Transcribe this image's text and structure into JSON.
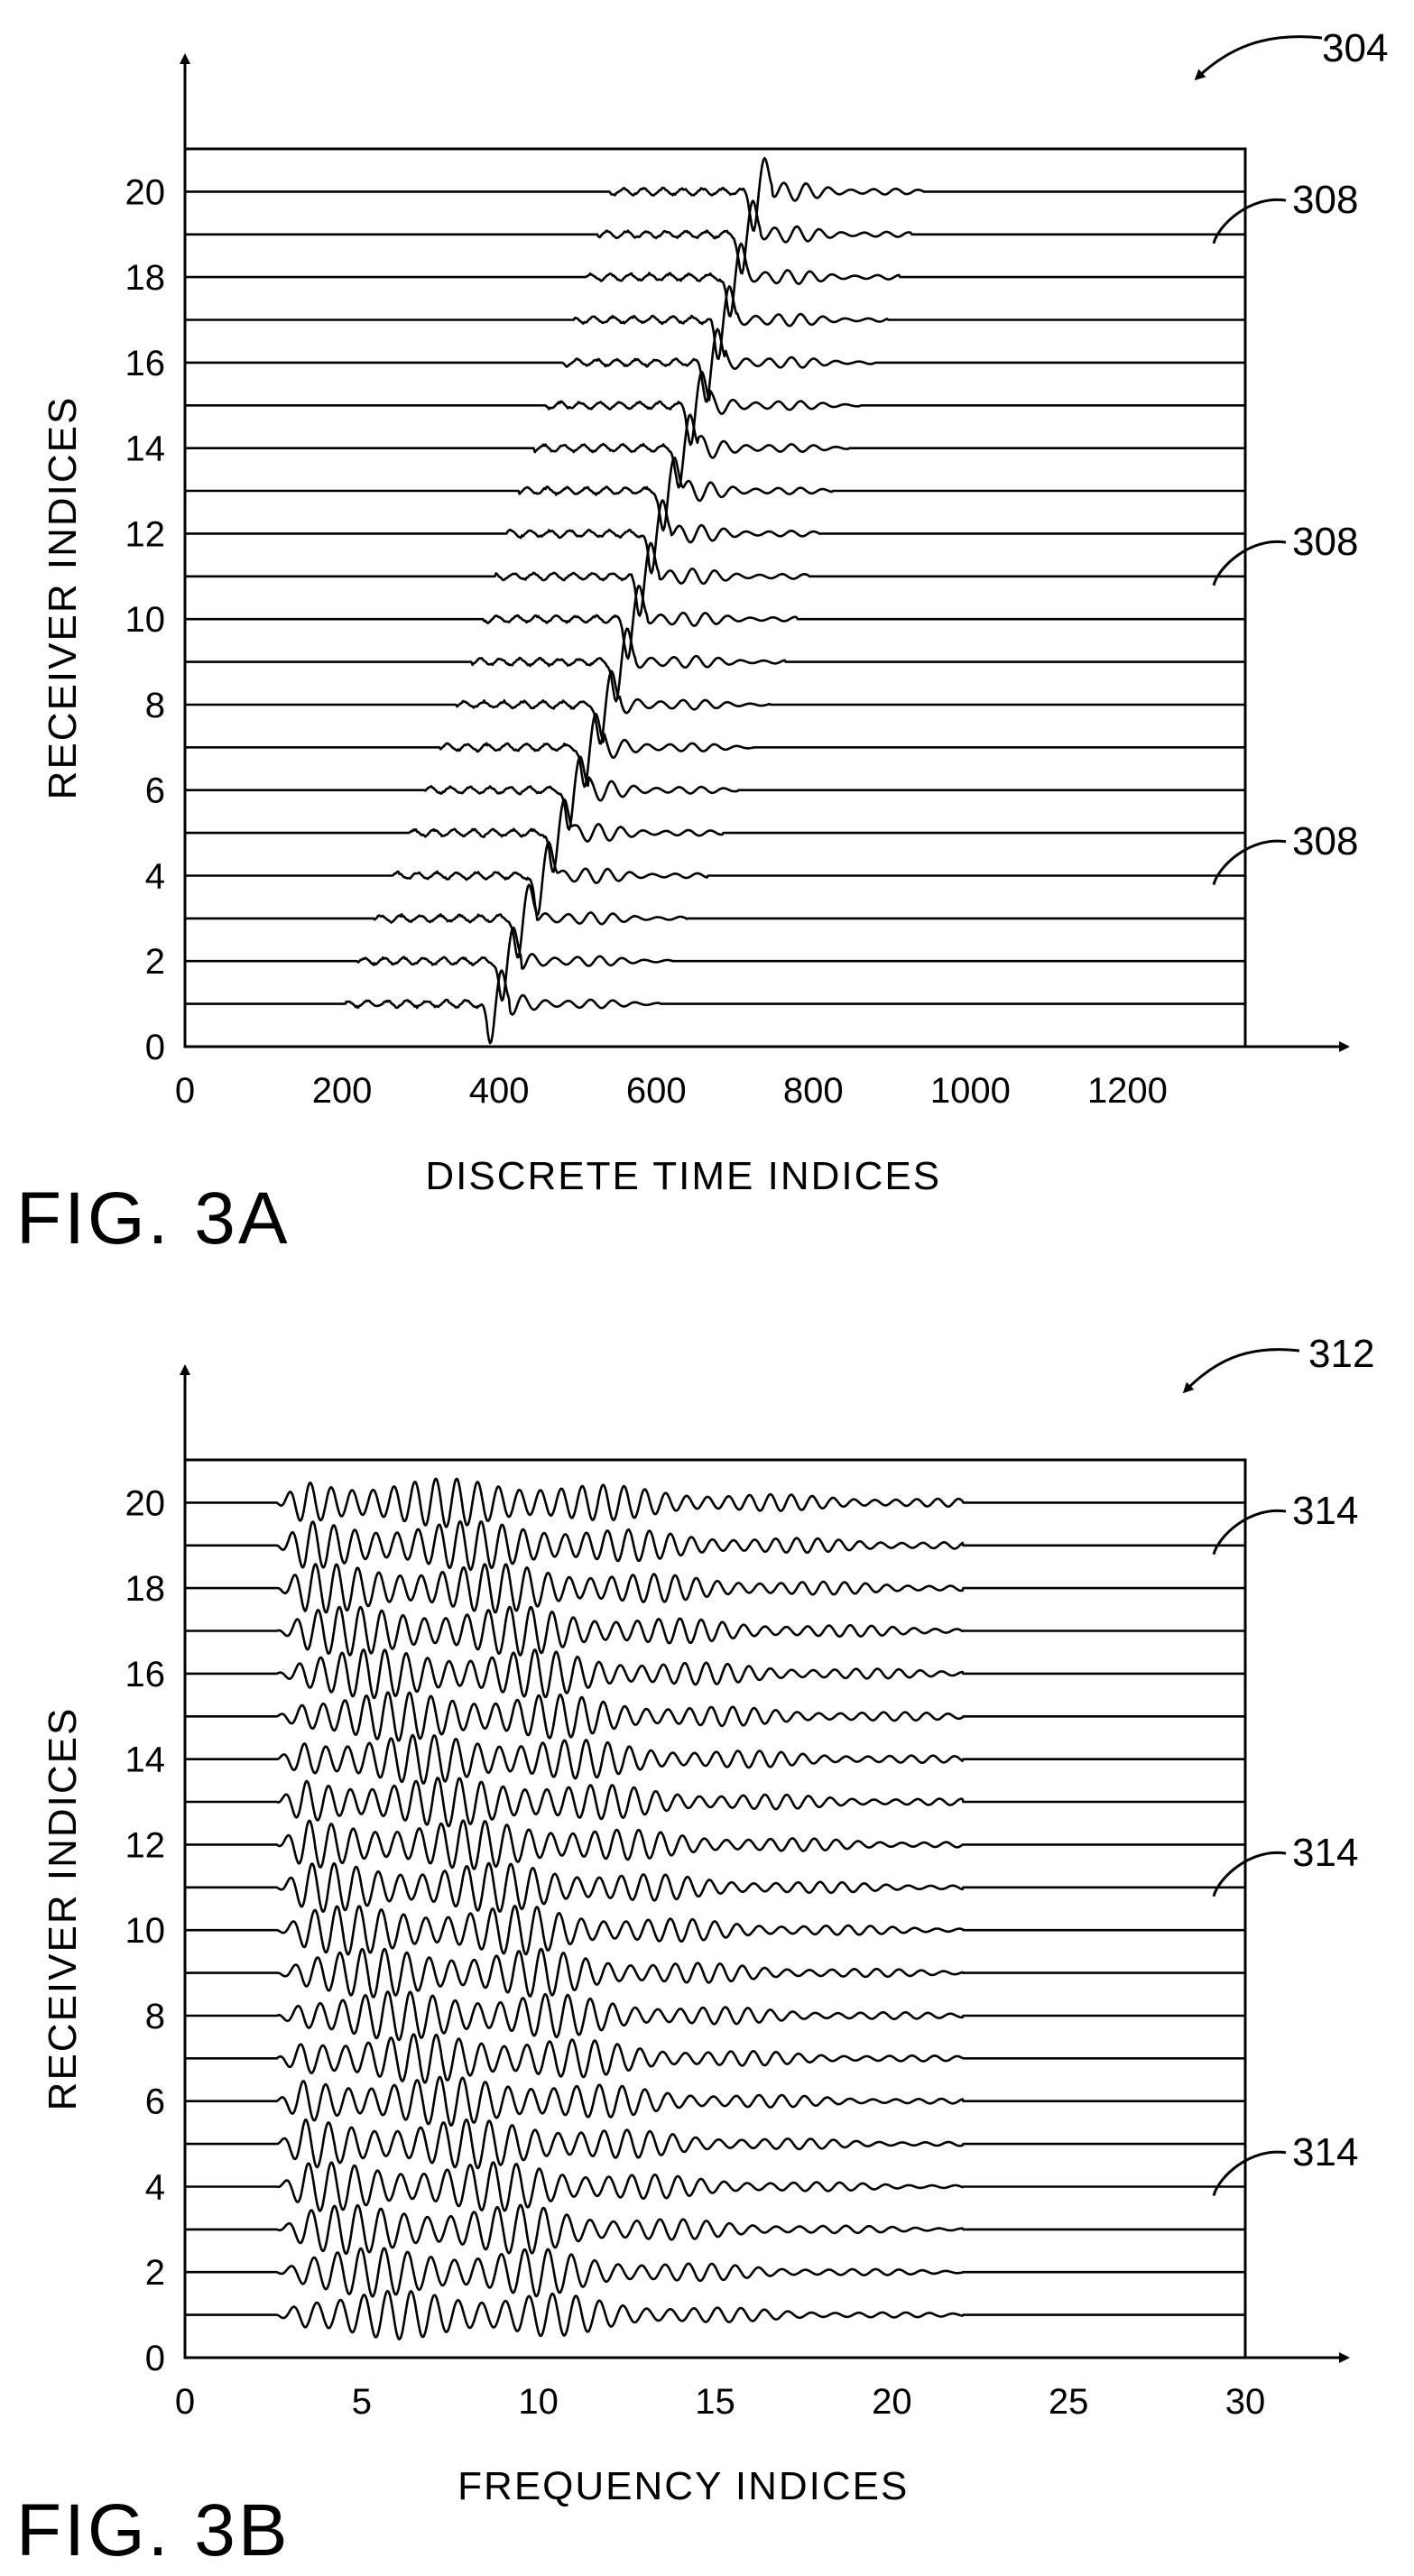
{
  "figures": [
    {
      "id": "3a",
      "fig_label": "FIG. 3A",
      "ref_numeral": "304",
      "callouts": [
        "308",
        "308",
        "308"
      ],
      "chart_data": {
        "type": "line",
        "title": "",
        "xlabel": "DISCRETE TIME INDICES",
        "ylabel": "RECEIVER INDICES",
        "xlim": [
          0,
          1350
        ],
        "ylim": [
          0,
          21
        ],
        "xticks": [
          0,
          200,
          400,
          600,
          800,
          1000,
          1200
        ],
        "yticks": [
          0,
          2,
          4,
          6,
          8,
          10,
          12,
          14,
          16,
          18,
          20
        ],
        "grid": false,
        "legend": "none",
        "series_description": "one seismic trace per receiver index 1-20; baseline at the receiver index",
        "receivers": [
          1,
          2,
          3,
          4,
          5,
          6,
          7,
          8,
          9,
          10,
          11,
          12,
          13,
          14,
          15,
          16,
          17,
          18,
          19,
          20
        ],
        "first_arrival_time": [
          395,
          410,
          430,
          455,
          475,
          495,
          515,
          535,
          555,
          570,
          585,
          600,
          615,
          635,
          650,
          670,
          685,
          700,
          715,
          730
        ],
        "callout_receivers": [
          19,
          11,
          4
        ]
      }
    },
    {
      "id": "3b",
      "fig_label": "FIG. 3B",
      "ref_numeral": "312",
      "callouts": [
        "314",
        "314",
        "314"
      ],
      "chart_data": {
        "type": "line",
        "title": "",
        "xlabel": "FREQUENCY INDICES",
        "ylabel": "RECEIVER INDICES",
        "xlim": [
          0,
          30
        ],
        "ylim": [
          0,
          21
        ],
        "xticks": [
          0,
          5,
          10,
          15,
          20,
          25,
          30
        ],
        "yticks": [
          0,
          2,
          4,
          6,
          8,
          10,
          12,
          14,
          16,
          18,
          20
        ],
        "grid": false,
        "legend": "none",
        "series_description": "oscillatory frequency-domain trace per receiver index 1-20; energy concentrated between frequency index 3 and 22",
        "receivers": [
          1,
          2,
          3,
          4,
          5,
          6,
          7,
          8,
          9,
          10,
          11,
          12,
          13,
          14,
          15,
          16,
          17,
          18,
          19,
          20
        ],
        "energy_band": [
          3,
          22
        ],
        "callout_receivers": [
          19,
          11,
          4
        ]
      }
    }
  ]
}
